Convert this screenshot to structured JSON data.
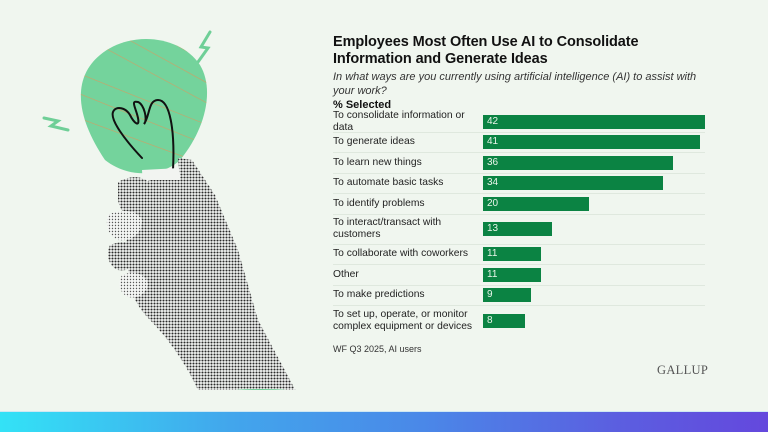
{
  "header": {
    "title": "Employees Most Often Use AI to Consolidate Information and Generate Ideas",
    "subtitle": "In what ways are you currently using artificial intelligence (AI) to assist with your work?",
    "unit": "% Selected"
  },
  "rows": [
    {
      "label": "To consolidate information or data",
      "value": 42
    },
    {
      "label": "To generate ideas",
      "value": 41
    },
    {
      "label": "To learn new things",
      "value": 36
    },
    {
      "label": "To automate basic tasks",
      "value": 34
    },
    {
      "label": "To identify problems",
      "value": 20
    },
    {
      "label": "To interact/transact with customers",
      "value": 13
    },
    {
      "label": "To collaborate with coworkers",
      "value": 11
    },
    {
      "label": "Other",
      "value": 11
    },
    {
      "label": "To make predictions",
      "value": 9
    },
    {
      "label": "To set up, operate, or monitor complex equipment or devices",
      "value": 8
    }
  ],
  "footer": {
    "source": "WF Q3 2025, AI users",
    "logo": "GALLUP"
  },
  "colors": {
    "bar": "#0b8343",
    "background": "#f0f6ef",
    "bulb": "#6fcf97",
    "gradient_start": "#33e2f6",
    "gradient_end": "#6448dd"
  },
  "illustration": {
    "icons": [
      "lightbulb-icon",
      "hand-icon",
      "spark-icon"
    ]
  },
  "chart_data": {
    "type": "bar",
    "orientation": "horizontal",
    "title": "Employees Most Often Use AI to Consolidate Information and Generate Ideas",
    "subtitle": "In what ways are you currently using artificial intelligence (AI) to assist with your work?",
    "xlabel": "% Selected",
    "ylabel": "",
    "categories": [
      "To consolidate information or data",
      "To generate ideas",
      "To learn new things",
      "To automate basic tasks",
      "To identify problems",
      "To interact/transact with customers",
      "To collaborate with coworkers",
      "Other",
      "To make predictions",
      "To set up, operate, or monitor complex equipment or devices"
    ],
    "values": [
      42,
      41,
      36,
      34,
      20,
      13,
      11,
      11,
      9,
      8
    ],
    "xlim": [
      0,
      42
    ],
    "grid": false,
    "legend": null,
    "data_labels": true,
    "source": "WF Q3 2025, AI users"
  }
}
